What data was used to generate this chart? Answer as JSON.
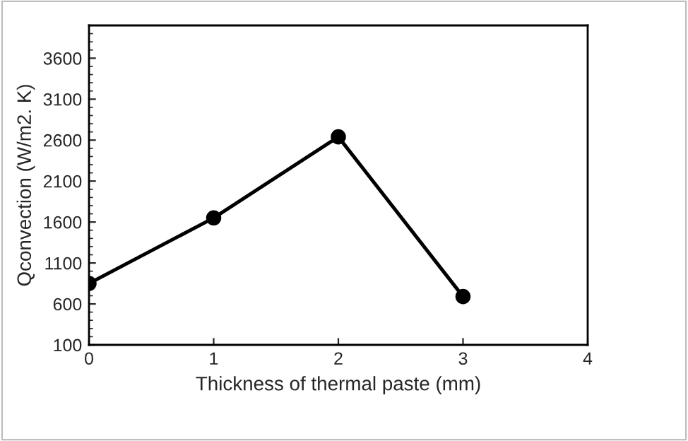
{
  "chart_data": {
    "type": "line",
    "xlabel": "Thickness of thermal paste (mm)",
    "ylabel": "Qconvection (W/m2. K)",
    "x": [
      0,
      1,
      2,
      3
    ],
    "series": [
      {
        "color": "#000000",
        "values": [
          850,
          1650,
          2640,
          690
        ]
      }
    ],
    "xlim": [
      0,
      4
    ],
    "xticks": [
      0,
      1,
      2,
      3,
      4
    ],
    "ylim": [
      100,
      4000
    ],
    "yticks": [
      100,
      600,
      1100,
      1600,
      2100,
      2600,
      3100,
      3600
    ],
    "marker": "circle",
    "line_style": "solid"
  }
}
